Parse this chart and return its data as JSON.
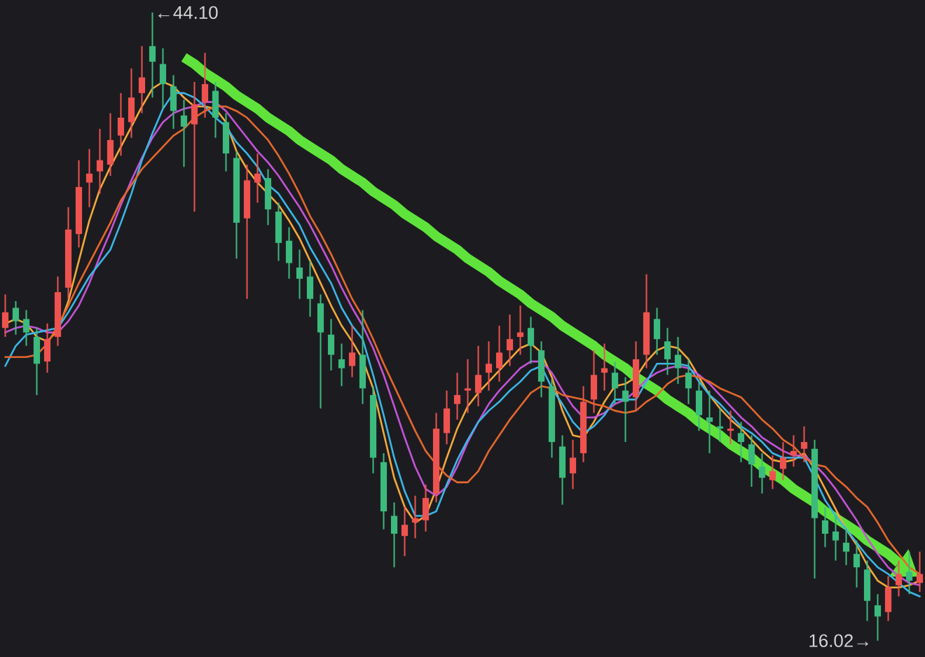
{
  "chart_data": {
    "type": "candlestick",
    "tick_labels": false,
    "categories": [
      null,
      null,
      null,
      null,
      null,
      null,
      null,
      null,
      null,
      null,
      null,
      null,
      null,
      null,
      null,
      null,
      null,
      null,
      null,
      null,
      null,
      null,
      null,
      null,
      null,
      null,
      null,
      null,
      null,
      null,
      null,
      null,
      null,
      null,
      null,
      null,
      null,
      null,
      null,
      null,
      null,
      null,
      null,
      null,
      null,
      null,
      null,
      null,
      null,
      null,
      null,
      null,
      null,
      null,
      null,
      null,
      null,
      null,
      null,
      null,
      null,
      null,
      null,
      null,
      null,
      null,
      null,
      null,
      null,
      null,
      null,
      null,
      null,
      null,
      null,
      null,
      null,
      null,
      null,
      null,
      null,
      null,
      null,
      null,
      null,
      null,
      null,
      null
    ],
    "ohlc": [
      [
        30.0,
        31.5,
        29.6,
        30.7
      ],
      [
        30.9,
        31.2,
        29.7,
        30.3
      ],
      [
        30.4,
        30.8,
        29.2,
        29.8
      ],
      [
        29.6,
        30.0,
        27.0,
        28.4
      ],
      [
        28.5,
        30.2,
        28.0,
        29.5
      ],
      [
        29.6,
        32.3,
        29.2,
        31.6
      ],
      [
        31.8,
        35.4,
        31.3,
        34.4
      ],
      [
        34.2,
        37.5,
        33.6,
        36.3
      ],
      [
        36.5,
        38.0,
        35.4,
        36.9
      ],
      [
        37.0,
        38.9,
        36.0,
        37.5
      ],
      [
        37.3,
        39.6,
        36.8,
        38.4
      ],
      [
        38.6,
        40.5,
        37.7,
        39.4
      ],
      [
        39.2,
        41.6,
        38.5,
        40.3
      ],
      [
        40.5,
        42.6,
        39.6,
        41.2
      ],
      [
        42.6,
        44.1,
        40.3,
        41.9
      ],
      [
        41.8,
        42.5,
        39.8,
        40.9
      ],
      [
        40.8,
        41.3,
        38.9,
        39.7
      ],
      [
        39.5,
        40.2,
        37.2,
        39.0
      ],
      [
        39.1,
        41.0,
        35.2,
        40.0
      ],
      [
        40.1,
        42.3,
        39.4,
        40.9
      ],
      [
        40.6,
        41.0,
        38.5,
        39.4
      ],
      [
        39.2,
        39.6,
        37.0,
        37.8
      ],
      [
        37.6,
        37.9,
        33.1,
        34.7
      ],
      [
        34.9,
        37.3,
        31.3,
        36.6
      ],
      [
        36.5,
        37.8,
        35.6,
        36.9
      ],
      [
        36.7,
        37.1,
        34.6,
        35.3
      ],
      [
        35.2,
        35.6,
        33.0,
        33.8
      ],
      [
        33.9,
        34.5,
        32.2,
        32.9
      ],
      [
        32.7,
        33.5,
        31.3,
        32.2
      ],
      [
        32.3,
        33.0,
        30.5,
        31.3
      ],
      [
        31.1,
        31.5,
        26.4,
        29.8
      ],
      [
        29.7,
        30.4,
        28.1,
        28.8
      ],
      [
        28.6,
        29.3,
        27.4,
        28.2
      ],
      [
        28.3,
        30.1,
        27.8,
        28.9
      ],
      [
        28.8,
        30.8,
        26.6,
        27.3
      ],
      [
        27.0,
        27.4,
        23.5,
        24.2
      ],
      [
        24.0,
        24.4,
        21.0,
        21.8
      ],
      [
        21.6,
        22.2,
        19.3,
        20.8
      ],
      [
        20.7,
        22.0,
        19.8,
        21.2
      ],
      [
        21.3,
        22.5,
        20.6,
        21.5
      ],
      [
        21.4,
        23.0,
        20.9,
        22.4
      ],
      [
        22.6,
        26.2,
        22.2,
        25.5
      ],
      [
        25.3,
        27.2,
        24.8,
        26.4
      ],
      [
        26.6,
        28.0,
        25.9,
        27.0
      ],
      [
        27.2,
        28.6,
        26.2,
        27.3
      ],
      [
        27.1,
        29.2,
        26.5,
        27.9
      ],
      [
        28.0,
        29.4,
        27.2,
        28.4
      ],
      [
        28.2,
        30.1,
        27.6,
        28.9
      ],
      [
        29.0,
        30.6,
        28.3,
        29.5
      ],
      [
        29.6,
        31.0,
        28.8,
        29.8
      ],
      [
        30.0,
        30.5,
        28.4,
        29.2
      ],
      [
        29.0,
        29.4,
        26.9,
        27.6
      ],
      [
        27.4,
        27.7,
        24.2,
        24.9
      ],
      [
        24.7,
        25.2,
        22.1,
        23.3
      ],
      [
        23.5,
        25.0,
        22.8,
        24.2
      ],
      [
        24.4,
        27.4,
        24.0,
        26.7
      ],
      [
        26.8,
        29.0,
        26.2,
        27.9
      ],
      [
        28.0,
        29.3,
        27.2,
        28.2
      ],
      [
        28.0,
        28.5,
        26.6,
        27.3
      ],
      [
        27.2,
        27.8,
        24.9,
        26.7
      ],
      [
        26.9,
        29.4,
        26.3,
        28.6
      ],
      [
        28.8,
        32.4,
        28.2,
        30.7
      ],
      [
        30.4,
        30.9,
        28.8,
        29.5
      ],
      [
        29.4,
        30.0,
        27.9,
        28.6
      ],
      [
        28.8,
        29.6,
        27.5,
        28.2
      ],
      [
        28.0,
        28.6,
        26.6,
        27.3
      ],
      [
        27.2,
        27.6,
        25.4,
        26.1
      ],
      [
        26.0,
        27.2,
        24.4,
        25.8
      ],
      [
        25.6,
        26.4,
        24.9,
        25.5
      ],
      [
        25.4,
        26.3,
        24.8,
        25.5
      ],
      [
        25.3,
        25.8,
        24.0,
        24.9
      ],
      [
        24.8,
        25.2,
        22.9,
        23.9
      ],
      [
        23.8,
        24.4,
        22.6,
        23.3
      ],
      [
        23.2,
        24.3,
        22.8,
        23.6
      ],
      [
        23.7,
        24.9,
        23.2,
        24.2
      ],
      [
        24.3,
        25.2,
        23.8,
        24.5
      ],
      [
        24.6,
        25.6,
        24.0,
        24.9
      ],
      [
        24.6,
        25.0,
        18.8,
        21.5
      ],
      [
        21.4,
        22.0,
        20.2,
        20.8
      ],
      [
        20.9,
        21.6,
        19.6,
        20.5
      ],
      [
        20.4,
        21.0,
        19.4,
        20.0
      ],
      [
        19.9,
        20.5,
        18.4,
        19.3
      ],
      [
        19.2,
        19.6,
        16.9,
        17.8
      ],
      [
        17.6,
        18.1,
        16.02,
        17.1
      ],
      [
        17.3,
        18.9,
        16.9,
        18.4
      ],
      [
        18.5,
        19.6,
        18.0,
        19.0
      ],
      [
        19.1,
        20.0,
        18.1,
        18.7
      ],
      [
        18.6,
        20.0,
        18.2,
        19.0
      ]
    ],
    "colors": [
      "#ef5350",
      "#3dba7e",
      "#3dba7e",
      "#3dba7e",
      "#ef5350",
      "#ef5350",
      "#ef5350",
      "#ef5350",
      "#ef5350",
      "#ef5350",
      "#ef5350",
      "#ef5350",
      "#ef5350",
      "#ef5350",
      "#3dba7e",
      "#3dba7e",
      "#3dba7e",
      "#3dba7e",
      "#ef5350",
      "#ef5350",
      "#3dba7e",
      "#3dba7e",
      "#3dba7e",
      "#ef5350",
      "#ef5350",
      "#3dba7e",
      "#3dba7e",
      "#3dba7e",
      "#3dba7e",
      "#3dba7e",
      "#3dba7e",
      "#3dba7e",
      "#3dba7e",
      "#ef5350",
      "#3dba7e",
      "#3dba7e",
      "#3dba7e",
      "#3dba7e",
      "#ef5350",
      "#ef5350",
      "#ef5350",
      "#ef5350",
      "#ef5350",
      "#ef5350",
      "#ef5350",
      "#ef5350",
      "#ef5350",
      "#ef5350",
      "#ef5350",
      "#ef5350",
      "#3dba7e",
      "#3dba7e",
      "#3dba7e",
      "#3dba7e",
      "#ef5350",
      "#ef5350",
      "#ef5350",
      "#ef5350",
      "#3dba7e",
      "#3dba7e",
      "#ef5350",
      "#ef5350",
      "#3dba7e",
      "#3dba7e",
      "#3dba7e",
      "#3dba7e",
      "#3dba7e",
      "#3dba7e",
      "#3dba7e",
      "#ef5350",
      "#3dba7e",
      "#3dba7e",
      "#3dba7e",
      "#ef5350",
      "#ef5350",
      "#ef5350",
      "#ef5350",
      "#3dba7e",
      "#3dba7e",
      "#3dba7e",
      "#3dba7e",
      "#3dba7e",
      "#3dba7e",
      "#3dba7e",
      "#ef5350",
      "#ef5350",
      "#3dba7e",
      "#ef5350"
    ],
    "series": [
      {
        "type": "line",
        "color": "#f2a93b",
        "values": [
          30.2,
          30.4,
          30.2,
          29.6,
          29.4,
          29.9,
          31.2,
          33.0,
          34.8,
          36.2,
          37.2,
          38.1,
          39.0,
          39.9,
          40.7,
          41.0,
          40.8,
          40.3,
          39.9,
          39.9,
          39.8,
          39.2,
          37.9,
          37.1,
          36.5,
          36.0,
          35.5,
          34.8,
          34.0,
          33.0,
          32.0,
          31.0,
          30.1,
          29.4,
          28.6,
          27.3,
          25.3,
          23.3,
          22.0,
          21.3,
          21.6,
          22.8,
          24.2,
          25.5,
          26.5,
          27.1,
          27.6,
          28.1,
          28.6,
          29.1,
          29.3,
          28.9,
          27.8,
          26.3,
          25.2,
          25.1,
          25.8,
          26.7,
          27.4,
          27.5,
          27.8,
          28.5,
          29.0,
          29.2,
          29.1,
          28.6,
          27.8,
          27.0,
          26.4,
          25.9,
          25.5,
          25.0,
          24.5,
          24.1,
          24.0,
          24.1,
          24.4,
          23.7,
          22.8,
          21.9,
          21.0,
          20.3,
          19.4,
          18.7,
          18.4,
          18.4,
          18.5,
          18.7
        ]
      },
      {
        "type": "line",
        "color": "#c353d6",
        "values": [
          29.8,
          30.0,
          30.1,
          30.0,
          29.8,
          29.8,
          30.3,
          31.0,
          32.0,
          33.2,
          34.3,
          35.5,
          36.6,
          37.6,
          38.5,
          39.2,
          39.6,
          39.8,
          39.9,
          40.1,
          40.1,
          39.7,
          39.1,
          38.5,
          37.9,
          37.4,
          36.8,
          36.1,
          35.4,
          34.6,
          33.7,
          32.8,
          31.8,
          30.9,
          30.1,
          29.1,
          27.9,
          26.5,
          25.1,
          23.8,
          22.8,
          22.5,
          22.9,
          23.8,
          24.9,
          25.8,
          26.6,
          27.2,
          27.7,
          28.2,
          28.5,
          28.5,
          28.0,
          27.2,
          26.5,
          26.0,
          26.0,
          26.2,
          26.6,
          26.8,
          27.2,
          27.7,
          28.0,
          28.2,
          28.3,
          28.2,
          27.9,
          27.5,
          27.0,
          26.5,
          26.0,
          25.6,
          25.1,
          24.8,
          24.5,
          24.3,
          24.3,
          23.9,
          23.4,
          22.8,
          22.1,
          21.4,
          20.6,
          19.9,
          19.3,
          18.9,
          18.6,
          18.5
        ]
      },
      {
        "type": "line",
        "color": "#3cb6e6",
        "values": [
          28.3,
          29.2,
          29.7,
          29.8,
          29.9,
          30.0,
          30.7,
          31.5,
          32.3,
          32.9,
          33.5,
          34.7,
          36.0,
          37.5,
          38.7,
          39.8,
          40.5,
          40.5,
          40.3,
          39.9,
          39.4,
          39.0,
          38.3,
          37.8,
          37.2,
          36.4,
          36.0,
          35.3,
          34.6,
          33.6,
          32.8,
          32.0,
          30.9,
          30.1,
          29.5,
          27.9,
          26.1,
          24.2,
          22.7,
          21.6,
          21.6,
          21.8,
          23.0,
          24.1,
          25.0,
          25.8,
          26.3,
          26.7,
          27.2,
          27.6,
          28.1,
          28.3,
          27.3,
          26.6,
          25.8,
          25.3,
          25.6,
          26.1,
          26.8,
          26.8,
          26.8,
          27.6,
          28.4,
          28.4,
          28.4,
          28.3,
          27.6,
          27.0,
          26.6,
          26.1,
          25.6,
          25.3,
          24.9,
          24.4,
          24.2,
          24.2,
          24.2,
          23.3,
          22.3,
          21.6,
          21.0,
          20.4,
          19.8,
          19.3,
          19.0,
          18.6,
          18.2,
          18.0
        ]
      },
      {
        "type": "line",
        "color": "#e5672d",
        "values": [
          28.7,
          28.7,
          28.7,
          28.8,
          29.3,
          30.1,
          31.0,
          32.0,
          32.9,
          33.8,
          34.7,
          35.7,
          36.4,
          37.1,
          37.6,
          38.1,
          38.6,
          38.9,
          39.4,
          39.7,
          39.9,
          39.9,
          39.7,
          39.4,
          38.9,
          38.4,
          37.7,
          36.9,
          36.0,
          35.0,
          34.2,
          33.3,
          32.3,
          31.3,
          30.5,
          29.5,
          28.4,
          27.4,
          26.4,
          25.4,
          24.5,
          23.9,
          23.4,
          23.1,
          23.1,
          23.6,
          24.5,
          25.2,
          25.9,
          26.5,
          27.1,
          27.4,
          27.3,
          27.0,
          26.9,
          26.8,
          26.6,
          26.5,
          26.3,
          26.2,
          26.3,
          26.7,
          27.0,
          27.5,
          27.8,
          27.9,
          27.8,
          27.6,
          27.3,
          27.1,
          26.9,
          26.4,
          25.9,
          25.5,
          25.0,
          24.7,
          24.2,
          23.9,
          23.8,
          23.3,
          22.9,
          22.4,
          22.0,
          21.3,
          20.5,
          19.9,
          19.3,
          19.0
        ]
      },
      {
        "type": "line",
        "color": "#5fe33c",
        "values": [
          null,
          null,
          null,
          null,
          null,
          null,
          null,
          null,
          null,
          null,
          null,
          null,
          null,
          null,
          null,
          null,
          null,
          42.1,
          41.8,
          41.4,
          41.1,
          40.8,
          40.4,
          40.1,
          39.8,
          39.4,
          39.1,
          38.8,
          38.4,
          38.1,
          37.8,
          37.5,
          37.1,
          36.8,
          36.5,
          36.1,
          35.8,
          35.5,
          35.1,
          34.8,
          34.5,
          34.1,
          33.8,
          33.5,
          33.1,
          32.8,
          32.5,
          32.1,
          31.8,
          31.5,
          31.1,
          30.8,
          30.5,
          30.1,
          29.8,
          29.5,
          29.2,
          28.8,
          28.5,
          28.2,
          27.8,
          27.5,
          27.2,
          26.8,
          26.5,
          26.2,
          25.8,
          25.5,
          25.2,
          24.8,
          24.5,
          24.2,
          23.8,
          23.5,
          23.2,
          22.8,
          22.5,
          22.2,
          21.8,
          21.5,
          21.2,
          20.9,
          20.5,
          20.2,
          19.9,
          19.5,
          null,
          null
        ]
      }
    ],
    "annotations": [
      "←44.10",
      "16.02→"
    ]
  }
}
